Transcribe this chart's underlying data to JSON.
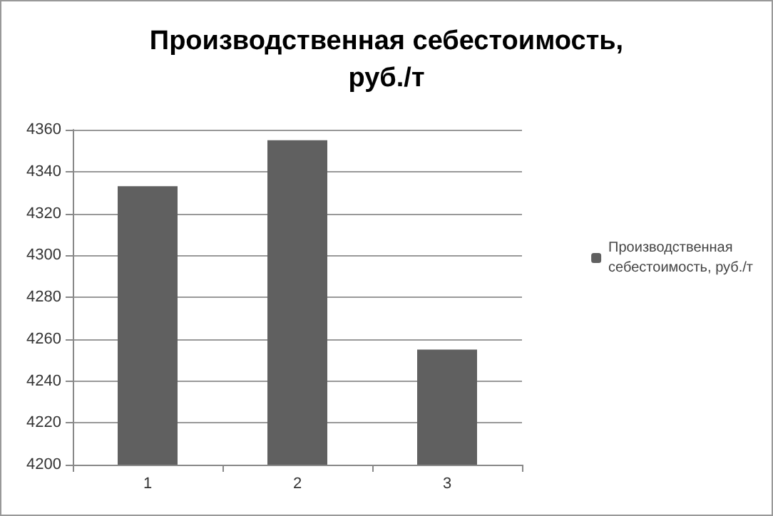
{
  "chart_data": {
    "type": "bar",
    "title": "Производственная себестоимость, руб./т",
    "categories": [
      "1",
      "2",
      "3"
    ],
    "series": [
      {
        "name": "Производственная себестоимость, руб./т",
        "color": "#606060",
        "values": [
          4333,
          4355,
          4255
        ]
      }
    ],
    "ylim": [
      4200,
      4360
    ],
    "yticks": [
      4200,
      4220,
      4240,
      4260,
      4280,
      4300,
      4320,
      4340,
      4360
    ],
    "grid": "y",
    "legend": "right"
  }
}
